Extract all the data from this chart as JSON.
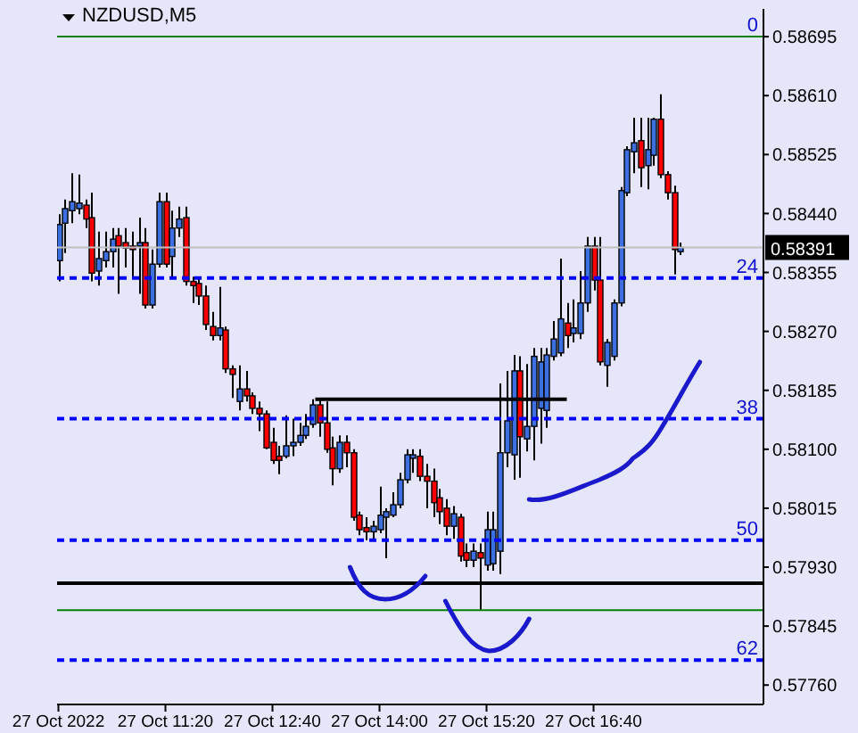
{
  "chart_data": {
    "type": "candlestick",
    "title": "NZDUSD,M5",
    "x": [
      "2022-10-27T10:00",
      "2022-10-27T10:05",
      "2022-10-27T10:10",
      "2022-10-27T10:15",
      "2022-10-27T10:20",
      "2022-10-27T10:25",
      "2022-10-27T10:30",
      "2022-10-27T10:35",
      "2022-10-27T10:40",
      "2022-10-27T10:45",
      "2022-10-27T10:50",
      "2022-10-27T10:55",
      "2022-10-27T11:00",
      "2022-10-27T11:05",
      "2022-10-27T11:10",
      "2022-10-27T11:15",
      "2022-10-27T11:20",
      "2022-10-27T11:25",
      "2022-10-27T11:30",
      "2022-10-27T11:35",
      "2022-10-27T11:40",
      "2022-10-27T11:45",
      "2022-10-27T11:50",
      "2022-10-27T11:55",
      "2022-10-27T12:00",
      "2022-10-27T12:05",
      "2022-10-27T12:10",
      "2022-10-27T12:15",
      "2022-10-27T12:20",
      "2022-10-27T12:25",
      "2022-10-27T12:30",
      "2022-10-27T12:35",
      "2022-10-27T12:40",
      "2022-10-27T12:45",
      "2022-10-27T12:50",
      "2022-10-27T12:55",
      "2022-10-27T13:00",
      "2022-10-27T13:05",
      "2022-10-27T13:10",
      "2022-10-27T13:15",
      "2022-10-27T13:20",
      "2022-10-27T13:25",
      "2022-10-27T13:30",
      "2022-10-27T13:35",
      "2022-10-27T13:40",
      "2022-10-27T13:45",
      "2022-10-27T13:50",
      "2022-10-27T13:55",
      "2022-10-27T14:00",
      "2022-10-27T14:05",
      "2022-10-27T14:10",
      "2022-10-27T14:15",
      "2022-10-27T14:20",
      "2022-10-27T14:25",
      "2022-10-27T14:30",
      "2022-10-27T14:35",
      "2022-10-27T14:40",
      "2022-10-27T14:45",
      "2022-10-27T14:50",
      "2022-10-27T14:55",
      "2022-10-27T15:00",
      "2022-10-27T15:05",
      "2022-10-27T15:10",
      "2022-10-27T15:15",
      "2022-10-27T15:20",
      "2022-10-27T15:25",
      "2022-10-27T15:30",
      "2022-10-27T15:35",
      "2022-10-27T15:40",
      "2022-10-27T15:45",
      "2022-10-27T15:50",
      "2022-10-27T15:55",
      "2022-10-27T16:00",
      "2022-10-27T16:05",
      "2022-10-27T16:10",
      "2022-10-27T16:15",
      "2022-10-27T16:20",
      "2022-10-27T16:25",
      "2022-10-27T16:30",
      "2022-10-27T16:35",
      "2022-10-27T16:40",
      "2022-10-27T16:45",
      "2022-10-27T16:50",
      "2022-10-27T16:55",
      "2022-10-27T17:00",
      "2022-10-27T17:05",
      "2022-10-27T17:10",
      "2022-10-27T17:15",
      "2022-10-27T17:20",
      "2022-10-27T17:25",
      "2022-10-27T17:30",
      "2022-10-27T17:35",
      "2022-10-27T17:40",
      "2022-10-27T17:45"
    ],
    "ohlc": [
      [
        0.58372,
        0.58439,
        0.58342,
        0.58424
      ],
      [
        0.58426,
        0.5846,
        0.58383,
        0.58447
      ],
      [
        0.58444,
        0.58498,
        0.58426,
        0.58457
      ],
      [
        0.58447,
        0.58496,
        0.58439,
        0.58455
      ],
      [
        0.58452,
        0.5846,
        0.58419,
        0.58432
      ],
      [
        0.58434,
        0.5847,
        0.58342,
        0.58354
      ],
      [
        0.58357,
        0.58414,
        0.58336,
        0.58375
      ],
      [
        0.58372,
        0.58414,
        0.58362,
        0.58385
      ],
      [
        0.58385,
        0.58419,
        0.58362,
        0.58403
      ],
      [
        0.58408,
        0.58419,
        0.58324,
        0.58393
      ],
      [
        0.58398,
        0.58419,
        0.58362,
        0.5839
      ],
      [
        0.58393,
        0.58414,
        0.58349,
        0.58388
      ],
      [
        0.58393,
        0.58434,
        0.58324,
        0.58398
      ],
      [
        0.58398,
        0.58419,
        0.58303,
        0.58308
      ],
      [
        0.58308,
        0.58388,
        0.58303,
        0.58367
      ],
      [
        0.58367,
        0.5847,
        0.58362,
        0.58457
      ],
      [
        0.58457,
        0.5847,
        0.58362,
        0.58367
      ],
      [
        0.58378,
        0.58444,
        0.58349,
        0.58419
      ],
      [
        0.58419,
        0.5845,
        0.58406,
        0.58432
      ],
      [
        0.58434,
        0.5845,
        0.58336,
        0.58342
      ],
      [
        0.58342,
        0.58349,
        0.58311,
        0.58336
      ],
      [
        0.58339,
        0.58349,
        0.58308,
        0.58321
      ],
      [
        0.58321,
        0.58336,
        0.58272,
        0.5828
      ],
      [
        0.58277,
        0.58298,
        0.58257,
        0.58264
      ],
      [
        0.58264,
        0.58334,
        0.58257,
        0.58275
      ],
      [
        0.58272,
        0.58277,
        0.5821,
        0.58216
      ],
      [
        0.58216,
        0.58221,
        0.58174,
        0.58208
      ],
      [
        0.58169,
        0.58221,
        0.58156,
        0.58187
      ],
      [
        0.58187,
        0.58213,
        0.58169,
        0.58177
      ],
      [
        0.58177,
        0.58182,
        0.58151,
        0.58159
      ],
      [
        0.58159,
        0.58169,
        0.58126,
        0.58151
      ],
      [
        0.58151,
        0.58156,
        0.581,
        0.58102
      ],
      [
        0.5811,
        0.58131,
        0.58079,
        0.58084
      ],
      [
        0.5809,
        0.58105,
        0.58064,
        0.58084
      ],
      [
        0.5809,
        0.58149,
        0.58087,
        0.58105
      ],
      [
        0.58105,
        0.58144,
        0.5809,
        0.5811
      ],
      [
        0.5811,
        0.58138,
        0.58105,
        0.5812
      ],
      [
        0.5812,
        0.58151,
        0.58115,
        0.58133
      ],
      [
        0.58136,
        0.58172,
        0.58131,
        0.58164
      ],
      [
        0.58164,
        0.58172,
        0.58118,
        0.58138
      ],
      [
        0.58138,
        0.58169,
        0.58095,
        0.581
      ],
      [
        0.58102,
        0.58118,
        0.58048,
        0.58072
      ],
      [
        0.58072,
        0.5812,
        0.58066,
        0.5811
      ],
      [
        0.5811,
        0.5812,
        0.58074,
        0.58095
      ],
      [
        0.58095,
        0.581,
        0.57997,
        0.58002
      ],
      [
        0.58005,
        0.5801,
        0.57976,
        0.57984
      ],
      [
        0.57987,
        0.58002,
        0.57969,
        0.57981
      ],
      [
        0.57981,
        0.57997,
        0.57971,
        0.57989
      ],
      [
        0.57984,
        0.58046,
        0.57979,
        0.58005
      ],
      [
        0.58002,
        0.58015,
        0.57943,
        0.5801
      ],
      [
        0.58005,
        0.58038,
        0.58002,
        0.5802
      ],
      [
        0.5802,
        0.58066,
        0.58015,
        0.58056
      ],
      [
        0.58056,
        0.581,
        0.58051,
        0.58092
      ],
      [
        0.58087,
        0.581,
        0.58066,
        0.58092
      ],
      [
        0.5809,
        0.581,
        0.58054,
        0.58061
      ],
      [
        0.58061,
        0.58079,
        0.58015,
        0.58054
      ],
      [
        0.58054,
        0.58072,
        0.58002,
        0.58023
      ],
      [
        0.5803,
        0.58043,
        0.57992,
        0.5801
      ],
      [
        0.58015,
        0.58028,
        0.57976,
        0.57989
      ],
      [
        0.57989,
        0.58018,
        0.57971,
        0.58007
      ],
      [
        0.58002,
        0.58007,
        0.57938,
        0.57946
      ],
      [
        0.57951,
        0.57964,
        0.5793,
        0.5794
      ],
      [
        0.5794,
        0.57964,
        0.5793,
        0.57953
      ],
      [
        0.57951,
        0.57964,
        0.57868,
        0.57943
      ],
      [
        0.57933,
        0.5801,
        0.57925,
        0.57984
      ],
      [
        0.57935,
        0.5801,
        0.57925,
        0.57984
      ],
      [
        0.57953,
        0.58195,
        0.5792,
        0.58095
      ],
      [
        0.58095,
        0.58213,
        0.58074,
        0.58141
      ],
      [
        0.58092,
        0.58236,
        0.58056,
        0.58213
      ],
      [
        0.58213,
        0.58234,
        0.58059,
        0.58118
      ],
      [
        0.58115,
        0.58223,
        0.58097,
        0.58133
      ],
      [
        0.58133,
        0.58246,
        0.58084,
        0.58234
      ],
      [
        0.58159,
        0.58246,
        0.58108,
        0.58226
      ],
      [
        0.58156,
        0.58246,
        0.58131,
        0.58236
      ],
      [
        0.58234,
        0.58285,
        0.58228,
        0.58259
      ],
      [
        0.58239,
        0.58375,
        0.58234,
        0.58288
      ],
      [
        0.58282,
        0.58311,
        0.58246,
        0.58264
      ],
      [
        0.58267,
        0.58316,
        0.58254,
        0.58275
      ],
      [
        0.58267,
        0.58357,
        0.58259,
        0.58311
      ],
      [
        0.58311,
        0.58406,
        0.58298,
        0.58393
      ],
      [
        0.58393,
        0.58406,
        0.58329,
        0.58344
      ],
      [
        0.58344,
        0.58406,
        0.58221,
        0.58226
      ],
      [
        0.58221,
        0.58259,
        0.5819,
        0.58254
      ],
      [
        0.58234,
        0.58316,
        0.58228,
        0.58311
      ],
      [
        0.58311,
        0.58478,
        0.58306,
        0.58473
      ],
      [
        0.5847,
        0.58537,
        0.58465,
        0.58532
      ],
      [
        0.58529,
        0.58578,
        0.58498,
        0.58542
      ],
      [
        0.58545,
        0.58578,
        0.58478,
        0.58506
      ],
      [
        0.58509,
        0.58578,
        0.58475,
        0.58532
      ],
      [
        0.58524,
        0.58578,
        0.58509,
        0.58576
      ],
      [
        0.58576,
        0.58612,
        0.58491,
        0.58496
      ],
      [
        0.58496,
        0.58501,
        0.5846,
        0.5847
      ],
      [
        0.5847,
        0.5848,
        0.58352,
        0.58388
      ],
      [
        0.58385,
        0.58398,
        0.5838,
        0.58391
      ]
    ],
    "series": [
      {
        "type": "line",
        "color": "#000000",
        "x": [
          "2022-10-27T13:12",
          "2022-10-27T16:20"
        ],
        "values": [
          0.58172,
          0.58172
        ]
      }
    ],
    "xlim": [
      "2022-10-27T09:59",
      "2022-10-27T18:47"
    ],
    "xticks": [
      {
        "value": "2022-10-27T10:00",
        "label": "27 Oct 2022"
      },
      {
        "value": "2022-10-27T11:20",
        "label": "27 Oct 11:20"
      },
      {
        "value": "2022-10-27T12:40",
        "label": "27 Oct 12:40"
      },
      {
        "value": "2022-10-27T14:00",
        "label": "27 Oct 14:00"
      },
      {
        "value": "2022-10-27T15:20",
        "label": "27 Oct 15:20"
      },
      {
        "value": "2022-10-27T16:40",
        "label": "27 Oct 16:40"
      }
    ],
    "ylim": [
      0.57732,
      0.58735
    ],
    "yticks": [
      0.58695,
      {
        "value": 0.5861,
        "label": "0.58610"
      },
      0.58525,
      {
        "value": 0.5844,
        "label": "0.58440"
      },
      0.58355,
      {
        "value": 0.5827,
        "label": "0.58270"
      },
      0.58185,
      {
        "value": 0.581,
        "label": "0.58100"
      },
      0.58015,
      {
        "value": 0.5793,
        "label": "0.57930"
      },
      0.57845,
      {
        "value": 0.5776,
        "label": "0.57760"
      }
    ],
    "ref_lines": [
      {
        "axis": "y",
        "value": 0.58391,
        "label": "0.58391",
        "color": "#c0c0c0",
        "line_style": "solid"
      },
      {
        "axis": "y",
        "value": 0.58695,
        "color": "#008000",
        "line_style": "solid"
      },
      {
        "axis": "y",
        "value": 0.58347,
        "color": "#0000ff",
        "line_style": "dashed"
      },
      {
        "axis": "y",
        "value": 0.58144,
        "color": "#0000ff",
        "line_style": "dashed"
      },
      {
        "axis": "y",
        "value": 0.57969,
        "color": "#0000ff",
        "line_style": "dashed"
      },
      {
        "axis": "y",
        "value": 0.57796,
        "color": "#0000ff",
        "line_style": "dashed"
      },
      {
        "axis": "y",
        "value": 0.57907,
        "color": "#000000",
        "line_style": "solid"
      },
      {
        "axis": "y",
        "value": 0.57868,
        "color": "#008000",
        "line_style": "solid"
      }
    ],
    "annotations": [
      {
        "text": "0",
        "y": 0.58695
      },
      {
        "text": "24",
        "y": 0.58347
      },
      {
        "text": "38",
        "y": 0.58144
      },
      {
        "text": "50",
        "y": 0.57969
      },
      {
        "text": "62",
        "y": 0.57796
      }
    ],
    "grid": false,
    "legend": false
  }
}
